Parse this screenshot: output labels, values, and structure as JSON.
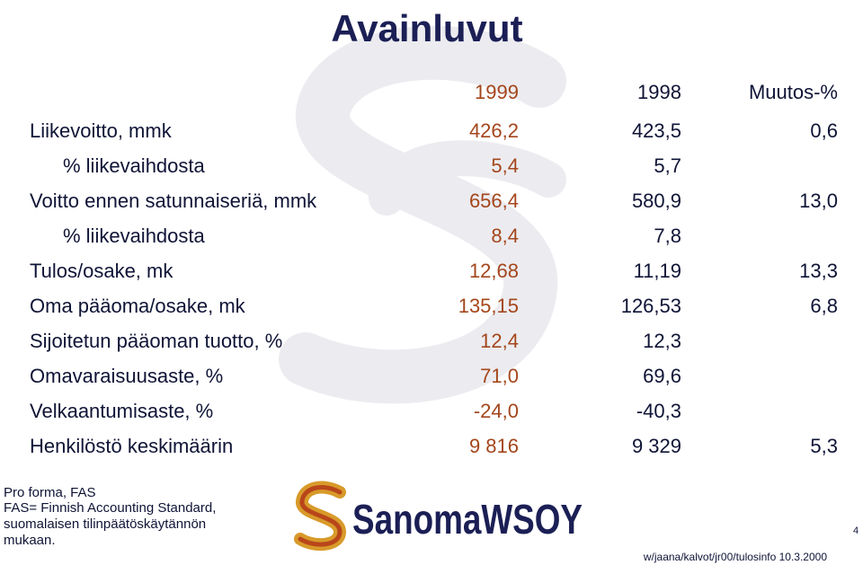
{
  "title": "Avainluvut",
  "table": {
    "header": [
      "1999",
      "1998",
      "Muutos-%"
    ],
    "rows": [
      [
        "Liikevoitto, mmk",
        "426,2",
        "423,5",
        "0,6"
      ],
      [
        "% liikevaihdosta",
        "5,4",
        "5,7",
        null
      ],
      [
        "Voitto ennen satunnaiseriä, mmk",
        "656,4",
        "580,9",
        "13,0"
      ],
      [
        "% liikevaihdosta",
        "8,4",
        "7,8",
        null
      ],
      [
        "Tulos/osake, mk",
        "12,68",
        "11,19",
        "13,3"
      ],
      [
        "Oma pääoma/osake, mk",
        "135,15",
        "126,53",
        "6,8"
      ],
      [
        "Sijoitetun pääoman tuotto, %",
        "12,4",
        "12,3",
        null
      ],
      [
        "Omavaraisuusaste, %",
        "71,0",
        "69,6",
        null
      ],
      [
        "Velkaantumisaste, %",
        "-24,0",
        "-40,3",
        null
      ],
      [
        "Henkilöstö keskimäärin",
        "9 816",
        "9 329",
        "5,3"
      ]
    ]
  },
  "note": {
    "lines": [
      "Pro forma, FAS",
      "FAS= Finnish Accounting Standard,",
      "suomalaisen tilinpäätöskäytännön",
      "mukaan."
    ]
  },
  "logo": {
    "text": "SanomaWSOY"
  },
  "page_number": "4",
  "file_path": "w/jaana/kalvot/jr00/tulosinfo 10.3.2000"
}
